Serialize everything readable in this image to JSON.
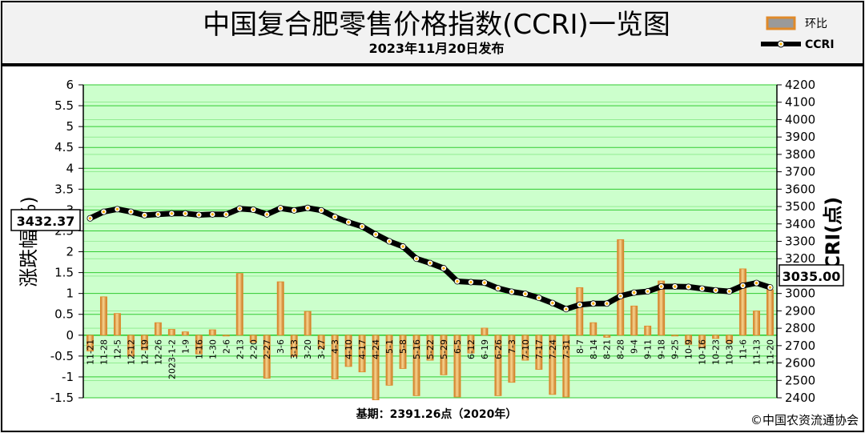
{
  "header": {
    "title": "中国复合肥零售价格指数(CCRI)一览图",
    "subtitle": "2023年11月20日发布"
  },
  "legend": {
    "position": "top-right",
    "items": [
      {
        "label": "环比",
        "color": "#e08a2a"
      },
      {
        "label": "CCRI",
        "color": "#000000"
      }
    ]
  },
  "footer": {
    "base_note": "基期：2391.26点（2020年）",
    "copyright": "©中国农资流通协会"
  },
  "callouts": {
    "start_value": "3432.37",
    "end_value": "3035.00"
  },
  "colors": {
    "plot_bg": "#ccffcc",
    "grid": "#33cc33",
    "bar": "#e08a2a",
    "bar_highlight": "#f5cf8c",
    "line": "#000000",
    "marker": "#ffffff",
    "marker_dot": "#ffb000",
    "frame_bg": "#f2f2f2"
  },
  "chart_data": {
    "type": "bar",
    "x_labels": [
      "11-21",
      "11-28",
      "12-5",
      "12-12",
      "12-19",
      "12-26",
      "2023-1-2",
      "1-9",
      "1-16",
      "1-30",
      "2-6",
      "2-13",
      "2-20",
      "2-27",
      "3-6",
      "3-13",
      "3-20",
      "3-27",
      "4-3",
      "4-10",
      "4-17",
      "4-24",
      "5-1",
      "5-8",
      "5-16",
      "5-22",
      "5-29",
      "6-5",
      "6-12",
      "6-19",
      "6-26",
      "7-3",
      "7-10",
      "7-17",
      "7-24",
      "7-31",
      "8-7",
      "8-14",
      "8-21",
      "8-28",
      "9-4",
      "9-11",
      "9-18",
      "9-25",
      "10-9",
      "10-16",
      "10-23",
      "10-30",
      "11-6",
      "11-13",
      "11-20"
    ],
    "series": [
      {
        "name": "环比",
        "axis": "left",
        "values": [
          -0.38,
          0.92,
          0.52,
          -0.5,
          -0.35,
          0.3,
          0.14,
          0.08,
          -0.45,
          0.13,
          -0.02,
          1.48,
          -0.17,
          -1.03,
          1.28,
          -0.51,
          0.57,
          -0.32,
          -1.05,
          -0.75,
          -0.88,
          -1.55,
          -1.2,
          -0.8,
          -1.45,
          -0.6,
          -0.95,
          -1.48,
          -0.43,
          0.17,
          -1.45,
          -1.13,
          -0.6,
          -0.82,
          -1.42,
          -1.48,
          1.14,
          0.3,
          -0.05,
          2.29,
          0.7,
          0.22,
          1.3,
          -0.02,
          -0.22,
          -0.3,
          -0.08,
          -0.18,
          1.59,
          0.58,
          1.09
        ]
      },
      {
        "name": "CCRI",
        "axis": "right",
        "values": [
          3432.37,
          3470,
          3485,
          3470,
          3450,
          3455,
          3460,
          3460,
          3452,
          3455,
          3455,
          3488,
          3482,
          3455,
          3490,
          3478,
          3492,
          3478,
          3440,
          3410,
          3385,
          3340,
          3300,
          3270,
          3200,
          3175,
          3145,
          3070,
          3065,
          3062,
          3030,
          3010,
          2998,
          2975,
          2945,
          2910,
          2935,
          2942,
          2942,
          2985,
          3005,
          3012,
          3040,
          3040,
          3038,
          3028,
          3018,
          3012,
          3045,
          3060,
          3035.0
        ]
      }
    ],
    "y_left": {
      "label": "涨跌幅(%)",
      "range": [
        -1.5,
        6
      ],
      "ticks": [
        -1.5,
        -1,
        -0.5,
        0,
        0.5,
        1,
        1.5,
        2,
        2.5,
        3,
        3.5,
        4,
        4.5,
        5,
        5.5,
        6
      ]
    },
    "y_right": {
      "label": "CCRI(点)",
      "range": [
        2400,
        4200
      ],
      "ticks": [
        2400,
        2500,
        2600,
        2700,
        2800,
        2900,
        3000,
        3100,
        3200,
        3300,
        3400,
        3500,
        3600,
        3700,
        3800,
        3900,
        4000,
        4100,
        4200
      ]
    },
    "grid": true
  }
}
